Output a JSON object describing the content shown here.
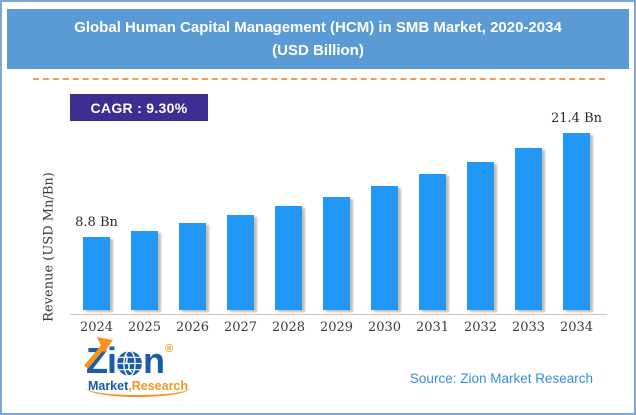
{
  "title": {
    "line1": "Global Human Capital Management (HCM) in SMB Market, 2020-2034",
    "line2": "(USD Billion)"
  },
  "cagr_badge": {
    "label": "CAGR : 9.30%"
  },
  "chart_data": {
    "type": "bar",
    "categories": [
      "2024",
      "2025",
      "2026",
      "2027",
      "2028",
      "2029",
      "2030",
      "2031",
      "2032",
      "2033",
      "2034"
    ],
    "values": [
      8.8,
      9.6,
      10.5,
      11.5,
      12.6,
      13.7,
      15.0,
      16.4,
      17.9,
      19.6,
      21.4
    ],
    "title": "Global Human Capital Management (HCM) in SMB Market, 2020-2034 (USD Billion)",
    "xlabel": "",
    "ylabel": "Revenue (USD Mn/Bn)",
    "ylim": [
      0,
      22
    ],
    "grid": false,
    "legend": false,
    "bar_color": "#2297F3",
    "data_labels": [
      {
        "index": 0,
        "text": "8.8 Bn"
      },
      {
        "index": 10,
        "text": "21.4 Bn"
      }
    ]
  },
  "logo": {
    "z": "Z",
    "i": "i",
    "n": "n",
    "registered": "®",
    "market": "Market",
    "comma": ",",
    "research": "Research",
    "globe_icon": "globe-icon",
    "arrow_icon": "growth-arrow-icon"
  },
  "footer": {
    "source": "Source: Zion Market Research"
  },
  "colors": {
    "title_bar_bg": "#5B9BD5",
    "frame_border": "#7CA7D8",
    "dash_color": "#ED9B57",
    "cagr_bg": "#3D2E91",
    "bar_color": "#2297F3",
    "axis_color": "#C8C8C8",
    "label_color": "#3A3A3A",
    "source_color": "#3A8DDE",
    "logo_blue": "#1A5CA8",
    "logo_orange": "#F7941E"
  }
}
